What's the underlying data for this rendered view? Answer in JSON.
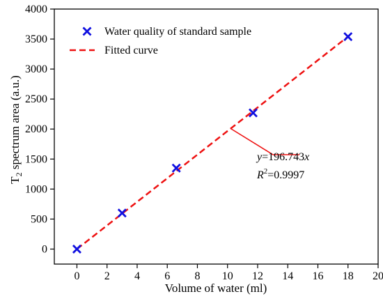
{
  "chart_data": {
    "type": "scatter",
    "xlabel": "Volume of water (ml)",
    "ylabel_main": "T",
    "ylabel_sub": "2",
    "ylabel_rest": " spectrum area (a.u.)",
    "xlim": [
      -1.5,
      20
    ],
    "ylim": [
      -250,
      4000
    ],
    "xticks": [
      0,
      2,
      4,
      6,
      8,
      10,
      12,
      14,
      16,
      18,
      20
    ],
    "yticks": [
      0,
      500,
      1000,
      1500,
      2000,
      2500,
      3000,
      3500,
      4000
    ],
    "grid": false,
    "legend_position": "top-left",
    "series": [
      {
        "name": "Water quality of standard sample",
        "kind": "scatter",
        "marker": "x",
        "color": "#1010e0",
        "x": [
          0,
          3,
          6.6,
          11.7,
          18
        ],
        "y": [
          0,
          600,
          1350,
          2270,
          3540
        ]
      },
      {
        "name": "Fitted curve",
        "kind": "line",
        "dash": "dashed",
        "color": "#ee1111",
        "x": [
          0,
          18
        ],
        "y": [
          0,
          3541
        ]
      }
    ],
    "annotation": {
      "eq_y": "y",
      "eq_rest": "=196.743",
      "eq_x": "x",
      "r_label": "R",
      "r_sup": "2",
      "r_rest": "=0.9997",
      "pointer_color": "#ee1111",
      "pointer_target": [
        10.2,
        2010
      ]
    }
  }
}
